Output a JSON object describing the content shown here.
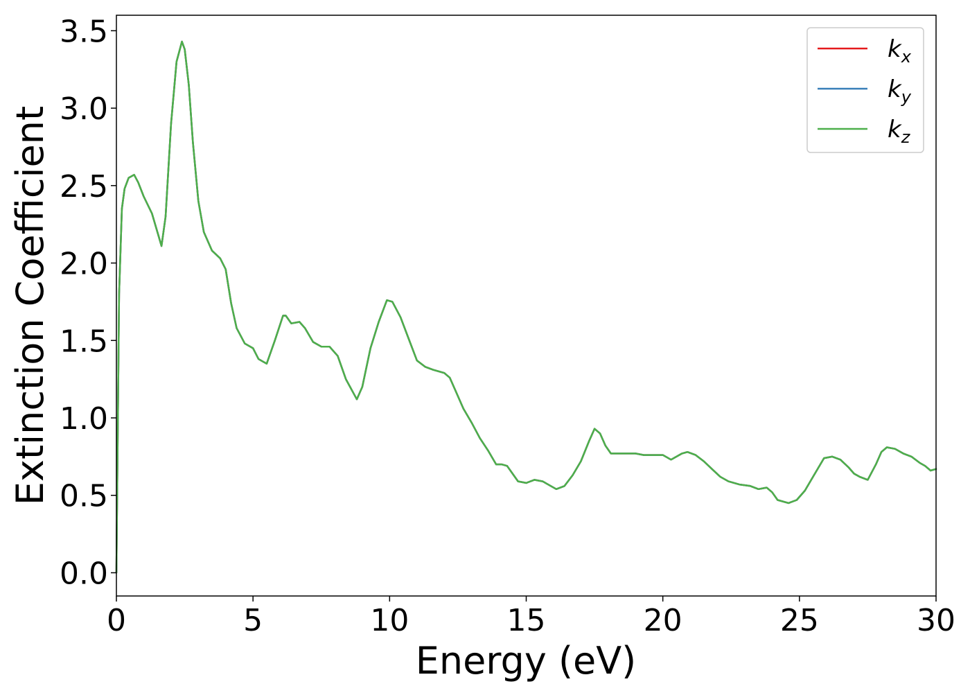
{
  "chart_data": {
    "type": "line",
    "title": "",
    "xlabel": "Energy (eV)",
    "ylabel": "Extinction Coefficient",
    "xlim": [
      0,
      30
    ],
    "ylim": [
      -0.15,
      3.6
    ],
    "xticks": [
      0,
      5,
      10,
      15,
      20,
      25,
      30
    ],
    "xtick_labels": [
      "0",
      "5",
      "10",
      "15",
      "20",
      "25",
      "30"
    ],
    "yticks": [
      0.0,
      0.5,
      1.0,
      1.5,
      2.0,
      2.5,
      3.0,
      3.5
    ],
    "ytick_labels": [
      "0.0",
      "0.5",
      "1.0",
      "1.5",
      "2.0",
      "2.5",
      "3.0",
      "3.5"
    ],
    "grid": false,
    "legend_position": "top-right",
    "series": [
      {
        "name": "k",
        "subscript": "x",
        "color": "#e41a1c",
        "x": [
          0,
          0.1,
          0.2,
          0.3,
          0.45,
          0.65,
          0.8,
          1.0,
          1.3,
          1.5,
          1.65,
          1.8,
          2.0,
          2.2,
          2.4,
          2.5,
          2.65,
          2.8,
          3.0,
          3.2,
          3.5,
          3.8,
          4.0,
          4.2,
          4.4,
          4.7,
          5.0,
          5.2,
          5.5,
          5.8,
          6.1,
          6.2,
          6.4,
          6.7,
          6.9,
          7.2,
          7.5,
          7.8,
          8.1,
          8.4,
          8.8,
          9.0,
          9.3,
          9.6,
          9.9,
          10.1,
          10.4,
          10.7,
          11.0,
          11.3,
          11.6,
          12.0,
          12.2,
          12.4,
          12.7,
          13.0,
          13.3,
          13.6,
          13.9,
          14.1,
          14.3,
          14.5,
          14.7,
          15.0,
          15.3,
          15.6,
          15.8,
          16.1,
          16.4,
          16.7,
          17.0,
          17.3,
          17.5,
          17.7,
          17.9,
          18.1,
          18.4,
          18.7,
          19.0,
          19.3,
          19.7,
          20.0,
          20.3,
          20.7,
          20.9,
          21.2,
          21.5,
          21.8,
          22.1,
          22.4,
          22.8,
          23.2,
          23.5,
          23.8,
          24.0,
          24.2,
          24.6,
          24.9,
          25.2,
          25.5,
          25.9,
          26.2,
          26.5,
          26.8,
          27.0,
          27.2,
          27.5,
          27.8,
          28.0,
          28.2,
          28.5,
          28.8,
          29.1,
          29.4,
          29.6,
          29.8,
          30.0
        ],
        "y": [
          0.0,
          1.8,
          2.35,
          2.48,
          2.55,
          2.57,
          2.52,
          2.43,
          2.32,
          2.2,
          2.11,
          2.3,
          2.9,
          3.3,
          3.43,
          3.38,
          3.15,
          2.78,
          2.4,
          2.2,
          2.08,
          2.03,
          1.96,
          1.74,
          1.58,
          1.48,
          1.45,
          1.38,
          1.35,
          1.5,
          1.66,
          1.66,
          1.61,
          1.62,
          1.58,
          1.49,
          1.46,
          1.46,
          1.4,
          1.25,
          1.12,
          1.2,
          1.45,
          1.62,
          1.76,
          1.75,
          1.65,
          1.51,
          1.37,
          1.33,
          1.31,
          1.29,
          1.26,
          1.18,
          1.06,
          0.97,
          0.87,
          0.79,
          0.7,
          0.7,
          0.69,
          0.64,
          0.59,
          0.58,
          0.6,
          0.59,
          0.57,
          0.54,
          0.56,
          0.63,
          0.72,
          0.85,
          0.93,
          0.9,
          0.82,
          0.77,
          0.77,
          0.77,
          0.77,
          0.76,
          0.76,
          0.76,
          0.73,
          0.77,
          0.78,
          0.76,
          0.72,
          0.67,
          0.62,
          0.59,
          0.57,
          0.56,
          0.54,
          0.55,
          0.52,
          0.47,
          0.45,
          0.47,
          0.53,
          0.62,
          0.74,
          0.75,
          0.73,
          0.68,
          0.64,
          0.62,
          0.6,
          0.7,
          0.78,
          0.81,
          0.8,
          0.77,
          0.75,
          0.71,
          0.69,
          0.66,
          0.67
        ]
      },
      {
        "name": "k",
        "subscript": "y",
        "color": "#377eb8",
        "same_as": "k_x"
      },
      {
        "name": "k",
        "subscript": "z",
        "color": "#4daf4a",
        "same_as": "k_x"
      }
    ]
  }
}
